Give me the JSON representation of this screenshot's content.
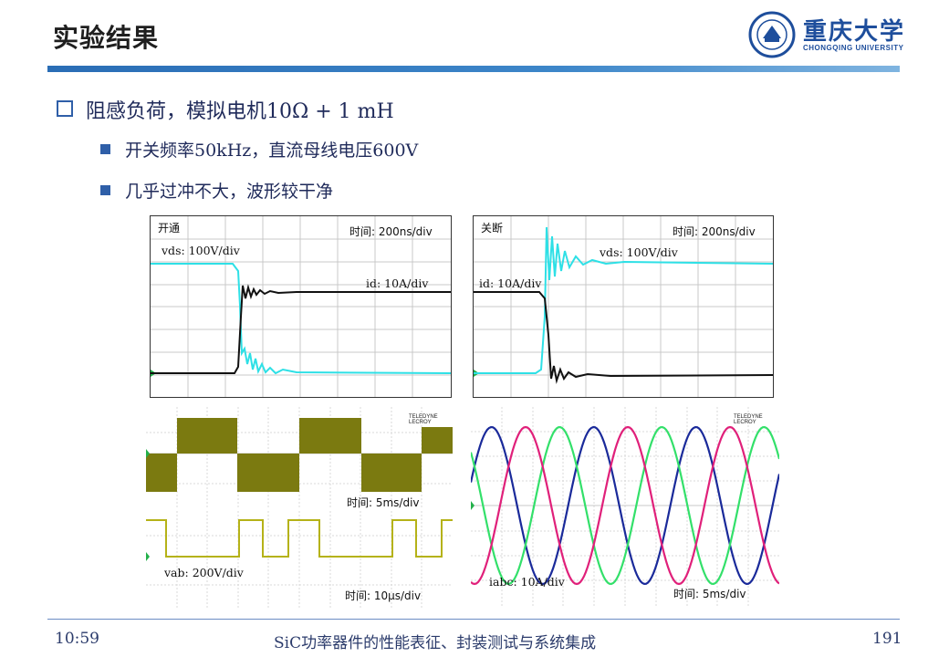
{
  "slide": {
    "title": "实验结果",
    "logo_cn": "重庆大学",
    "logo_en": "CHONGQING UNIVERSITY",
    "bullet1": "阻感负荷，模拟电机10Ω + 1 mH",
    "bullet2": "开关频率50kHz，直流母线电压600V",
    "bullet3": "几乎过冲不大，波形较干净"
  },
  "panels": {
    "turn_on": {
      "label": "开通",
      "time": "时间: 200ns/div",
      "vds": "vds: 100V/div",
      "id": "id: 10A/div"
    },
    "turn_off": {
      "label": "关断",
      "time": "时间: 200ns/div",
      "vds": "vds: 100V/div",
      "id": "id: 10A/div"
    },
    "square_wave": {
      "time": "时间: 5ms/div",
      "brand": "TELEDYNE LECROY"
    },
    "pwm": {
      "vab": "vab: 200V/div",
      "time": "时间: 10μs/div"
    },
    "three_phase": {
      "iabc": "iabc: 10A/div",
      "time": "时间: 5ms/div",
      "brand": "TELEDYNE LECROY"
    }
  },
  "colors": {
    "cyan": "#2ee0e6",
    "black": "#111111",
    "olive": "#7b7a10",
    "blue": "#1a2a9a",
    "green": "#33e06a",
    "magenta": "#e0207a",
    "accent": "#2f5fa8"
  },
  "footer": {
    "time": "10:59",
    "caption": "SiC功率器件的性能表征、封装测试与系统集成",
    "page": "191"
  }
}
